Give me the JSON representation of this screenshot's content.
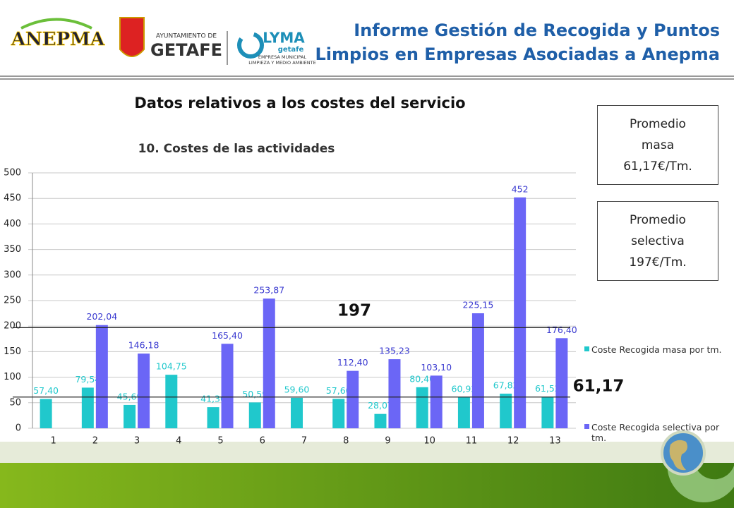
{
  "header": {
    "title_lines": [
      "Informe Gestión de Recogida y Puntos",
      "Limpios en Empresas Asociadas a Anepma"
    ],
    "logos": [
      "ANEPMA",
      "AYUNTAMIENTO DE",
      "GETAFE",
      "LYMA",
      "getafe",
      "EMPRESA MUNICIPAL",
      "LIMPIEZA Y MEDIO AMBIENTE"
    ]
  },
  "section_title": "Datos relativos a los costes del servicio",
  "boxes": [
    {
      "lines": [
        "Promedio",
        "masa",
        "61,17€/Tm."
      ]
    },
    {
      "lines": [
        "Promedio",
        "selectiva",
        "197€/Tm."
      ]
    }
  ],
  "chart_data": {
    "type": "bar",
    "title": "10. Costes de las actividades",
    "categories": [
      "1",
      "2",
      "3",
      "4",
      "5",
      "6",
      "7",
      "8",
      "9",
      "10",
      "11",
      "12",
      "13"
    ],
    "series": [
      {
        "name": "Coste Recogida masa por tm.",
        "color": "#20c8cc",
        "values": [
          57.4,
          79.54,
          45.69,
          104.75,
          41.3,
          50.59,
          59.6,
          57.6,
          28.07,
          80.4,
          60.92,
          67.82,
          61.52
        ],
        "value_labels": [
          "57,40",
          "79,54",
          "45,69",
          "104,75",
          "41,30",
          "50,59",
          "59,60",
          "57,60",
          "28,07",
          "80,40",
          "60,92",
          "67,82",
          "61,52"
        ]
      },
      {
        "name": "Coste Recogida selectiva por tm.",
        "color": "#6b66f6",
        "values": [
          null,
          202.04,
          146.18,
          null,
          165.4,
          253.87,
          null,
          112.4,
          135.23,
          103.1,
          225.15,
          452,
          176.4
        ],
        "value_labels": [
          null,
          "202,04",
          "146,18",
          null,
          "165,40",
          "253,87",
          null,
          "112,40",
          "135,23",
          "103,10",
          "225,15",
          "452",
          "176,40"
        ]
      }
    ],
    "ylim": [
      0,
      500
    ],
    "yticks": [
      0,
      50,
      100,
      150,
      200,
      250,
      300,
      350,
      400,
      450,
      500
    ],
    "grid": true,
    "reference_lines": [
      {
        "value": 197,
        "label": "197"
      },
      {
        "value": 61.17,
        "label": "61,17"
      }
    ]
  }
}
